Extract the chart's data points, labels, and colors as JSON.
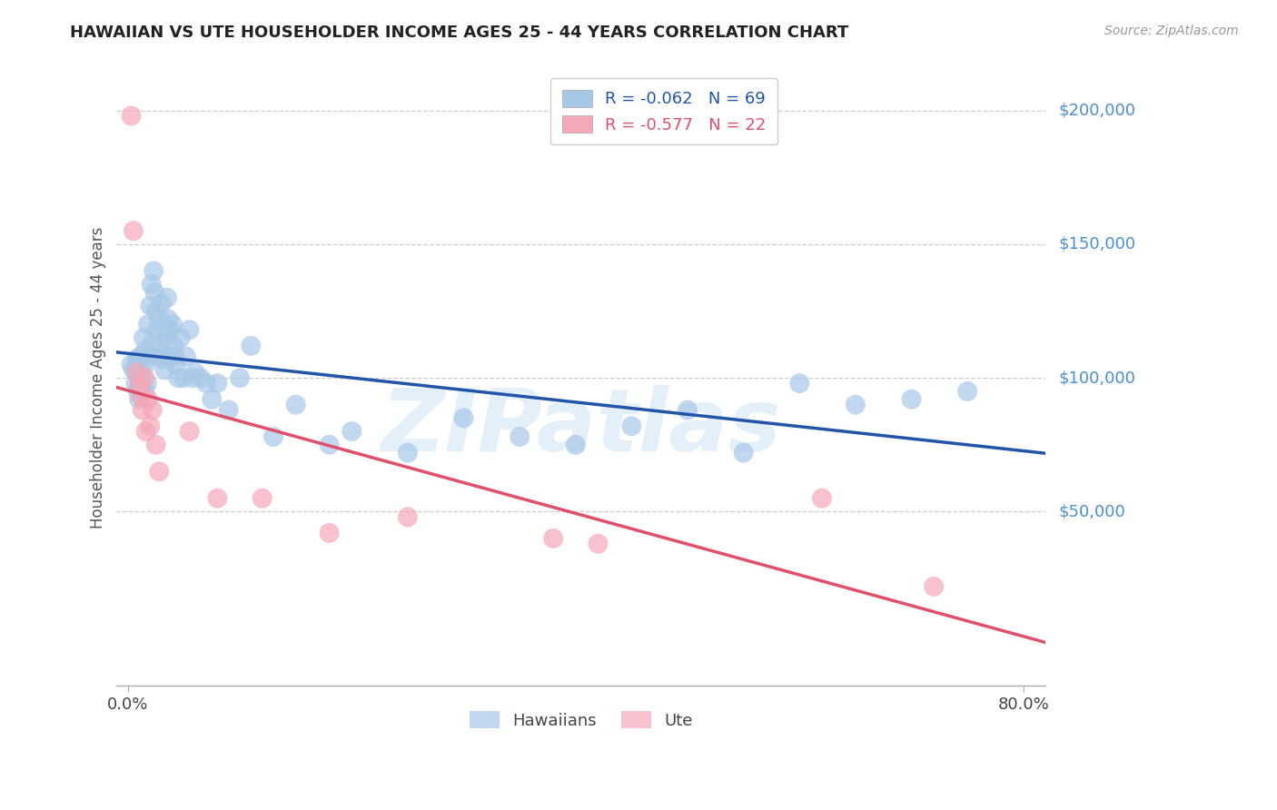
{
  "title": "HAWAIIAN VS UTE HOUSEHOLDER INCOME AGES 25 - 44 YEARS CORRELATION CHART",
  "source": "Source: ZipAtlas.com",
  "ylabel": "Householder Income Ages 25 - 44 years",
  "ytick_labels": [
    "$200,000",
    "$150,000",
    "$100,000",
    "$50,000"
  ],
  "ytick_values": [
    200000,
    150000,
    100000,
    50000
  ],
  "ylim": [
    -15000,
    215000
  ],
  "xlim": [
    -0.01,
    0.82
  ],
  "hawaiian_color": "#a8c8e8",
  "ute_color": "#f4a8b8",
  "hawaiian_line_color": "#2255aa",
  "ute_line_color": "#e0506a",
  "background_color": "#ffffff",
  "grid_color": "#cccccc",
  "hawaiians_x": [
    0.003,
    0.005,
    0.007,
    0.008,
    0.009,
    0.01,
    0.01,
    0.011,
    0.012,
    0.013,
    0.014,
    0.015,
    0.015,
    0.016,
    0.017,
    0.018,
    0.019,
    0.02,
    0.021,
    0.022,
    0.023,
    0.024,
    0.025,
    0.026,
    0.027,
    0.028,
    0.029,
    0.03,
    0.031,
    0.032,
    0.033,
    0.034,
    0.035,
    0.036,
    0.037,
    0.038,
    0.04,
    0.041,
    0.042,
    0.043,
    0.045,
    0.047,
    0.05,
    0.052,
    0.055,
    0.058,
    0.06,
    0.065,
    0.07,
    0.075,
    0.08,
    0.09,
    0.1,
    0.11,
    0.13,
    0.15,
    0.18,
    0.2,
    0.25,
    0.3,
    0.35,
    0.4,
    0.45,
    0.5,
    0.55,
    0.6,
    0.65,
    0.7,
    0.75
  ],
  "hawaiians_y": [
    105000,
    103000,
    98000,
    107000,
    95000,
    100000,
    92000,
    108000,
    102000,
    97000,
    115000,
    110000,
    95000,
    105000,
    98000,
    120000,
    108000,
    127000,
    135000,
    113000,
    140000,
    132000,
    125000,
    118000,
    108000,
    122000,
    112000,
    128000,
    107000,
    118000,
    103000,
    115000,
    130000,
    122000,
    108000,
    118000,
    120000,
    112000,
    108000,
    105000,
    100000,
    115000,
    100000,
    108000,
    118000,
    100000,
    102000,
    100000,
    98000,
    92000,
    98000,
    88000,
    100000,
    112000,
    78000,
    90000,
    75000,
    80000,
    72000,
    85000,
    78000,
    75000,
    82000,
    88000,
    72000,
    98000,
    90000,
    92000,
    95000
  ],
  "utes_x": [
    0.003,
    0.005,
    0.008,
    0.01,
    0.012,
    0.013,
    0.015,
    0.016,
    0.018,
    0.02,
    0.022,
    0.025,
    0.028,
    0.055,
    0.08,
    0.12,
    0.18,
    0.25,
    0.38,
    0.42,
    0.62,
    0.72
  ],
  "utes_y": [
    198000,
    155000,
    102000,
    97000,
    93000,
    88000,
    100000,
    80000,
    92000,
    82000,
    88000,
    75000,
    65000,
    80000,
    55000,
    55000,
    42000,
    48000,
    40000,
    38000,
    55000,
    22000
  ]
}
